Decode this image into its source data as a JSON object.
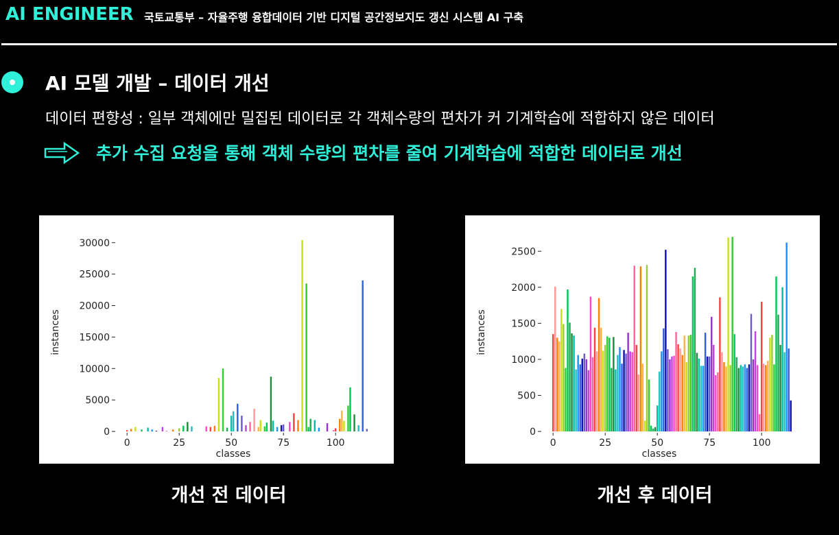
{
  "header": {
    "brand": "AI ENGINEER",
    "title": "국토교통부 – 자율주행 융합데이터 기반 디지털 공간정보지도 갱신 시스템 AI 구축"
  },
  "section": {
    "heading": "AI 모델 개발 – 데이터 개선",
    "description": "데이터 편향성 : 일부 객체에만 밀집된 데이터로 각 객체수량의 편차가 커 기계학습에 적합하지 않은 데이터",
    "conclusion": "추가 수집 요청을 통해 객체 수량의 편차를 줄여 기계학습에 적합한 데이터로 개선"
  },
  "chart_data": [
    {
      "type": "bar",
      "title": "개선 전 데이터",
      "x_label": "classes",
      "y_label": "instances",
      "x": [
        0,
        2,
        4,
        7,
        10,
        12,
        14,
        17,
        19,
        22,
        25,
        27,
        29,
        31,
        38,
        40,
        42,
        44,
        46,
        48,
        50,
        51,
        53,
        55,
        57,
        59,
        61,
        63,
        64,
        66,
        67,
        69,
        70,
        72,
        74,
        75,
        78,
        80,
        82,
        84,
        86,
        87,
        88,
        90,
        92,
        96,
        99,
        100,
        102,
        103,
        104,
        106,
        107,
        109,
        111,
        113,
        115
      ],
      "values": [
        200,
        400,
        700,
        300,
        600,
        300,
        100,
        700,
        100,
        300,
        500,
        900,
        1500,
        800,
        800,
        700,
        900,
        8500,
        10000,
        600,
        2500,
        3200,
        4400,
        2500,
        1000,
        1500,
        3600,
        700,
        1800,
        800,
        1400,
        8700,
        1700,
        700,
        1000,
        1100,
        1500,
        2900,
        1800,
        30400,
        23500,
        700,
        2000,
        1800,
        600,
        1300,
        200,
        500,
        2000,
        3300,
        1700,
        4100,
        7000,
        2700,
        1000,
        24000,
        400
      ],
      "palette": [
        "#ff4040",
        "#ff9a9a",
        "#ff7f00",
        "#ffb347",
        "#c8e01a",
        "#9acd32",
        "#32cd32",
        "#00c853",
        "#22aa55",
        "#1e8c3a",
        "#00bfa5",
        "#20c0c0",
        "#1e90ff",
        "#3060e0",
        "#1010b0",
        "#6a5acd",
        "#9932cc",
        "#c040e0",
        "#ff44cc",
        "#ff6699"
      ],
      "xlim": [
        -5,
        120
      ],
      "ylim": [
        0,
        31500
      ],
      "xticks": [
        0,
        25,
        50,
        75,
        100
      ],
      "yticks": [
        0,
        5000,
        10000,
        15000,
        20000,
        25000,
        30000
      ],
      "grid": false
    },
    {
      "type": "bar",
      "title": "개선 후 데이터",
      "x_label": "classes",
      "y_label": "instances",
      "x": [
        0,
        1,
        2,
        3,
        4,
        5,
        6,
        7,
        8,
        9,
        10,
        11,
        12,
        13,
        14,
        15,
        16,
        17,
        18,
        19,
        20,
        21,
        22,
        23,
        24,
        25,
        26,
        27,
        28,
        29,
        30,
        31,
        32,
        33,
        34,
        35,
        36,
        37,
        38,
        39,
        40,
        41,
        42,
        43,
        44,
        45,
        46,
        47,
        48,
        49,
        50,
        51,
        52,
        53,
        54,
        55,
        56,
        57,
        58,
        59,
        60,
        61,
        62,
        63,
        64,
        65,
        66,
        67,
        68,
        69,
        70,
        71,
        72,
        73,
        74,
        75,
        76,
        77,
        78,
        79,
        80,
        81,
        82,
        83,
        84,
        85,
        86,
        87,
        88,
        89,
        90,
        91,
        92,
        93,
        94,
        95,
        96,
        97,
        98,
        99,
        100,
        101,
        102,
        103,
        104,
        105,
        106,
        107,
        108,
        109,
        110,
        111,
        112,
        113,
        114
      ],
      "values": [
        1350,
        2010,
        1300,
        1250,
        1700,
        1490,
        880,
        1970,
        1510,
        1360,
        1330,
        860,
        1060,
        930,
        1010,
        1080,
        1000,
        850,
        1870,
        1030,
        1440,
        1110,
        1850,
        1440,
        1120,
        1200,
        1320,
        1300,
        880,
        1310,
        860,
        1060,
        1170,
        940,
        1130,
        1080,
        1370,
        1110,
        1100,
        2300,
        1200,
        790,
        2290,
        940,
        150,
        2310,
        720,
        80,
        40,
        60,
        360,
        830,
        1110,
        1430,
        2520,
        1140,
        1000,
        1040,
        1050,
        1380,
        1210,
        1150,
        1060,
        1330,
        960,
        1330,
        1340,
        2150,
        2270,
        1090,
        1010,
        910,
        910,
        1370,
        1040,
        1040,
        1590,
        1200,
        780,
        820,
        1860,
        1100,
        960,
        900,
        2690,
        920,
        2700,
        1350,
        1030,
        880,
        920,
        900,
        930,
        880,
        930,
        1630,
        1000,
        1390,
        920,
        240,
        1800,
        940,
        920,
        980,
        1300,
        1340,
        930,
        2150,
        1620,
        1200,
        2000,
        1100,
        2620,
        1150,
        430
      ],
      "palette": [
        "#ff4040",
        "#ff9a9a",
        "#ff7f00",
        "#ffb347",
        "#c8e01a",
        "#9acd32",
        "#32cd32",
        "#00c853",
        "#22aa55",
        "#1e8c3a",
        "#00bfa5",
        "#20c0c0",
        "#1e90ff",
        "#3060e0",
        "#1010b0",
        "#6a5acd",
        "#9932cc",
        "#c040e0",
        "#ff44cc",
        "#ff6699"
      ],
      "xlim": [
        -5,
        120
      ],
      "ylim": [
        0,
        2750
      ],
      "xticks": [
        0,
        25,
        50,
        75,
        100
      ],
      "yticks": [
        0,
        500,
        1000,
        1500,
        2000,
        2500
      ],
      "grid": false
    }
  ]
}
